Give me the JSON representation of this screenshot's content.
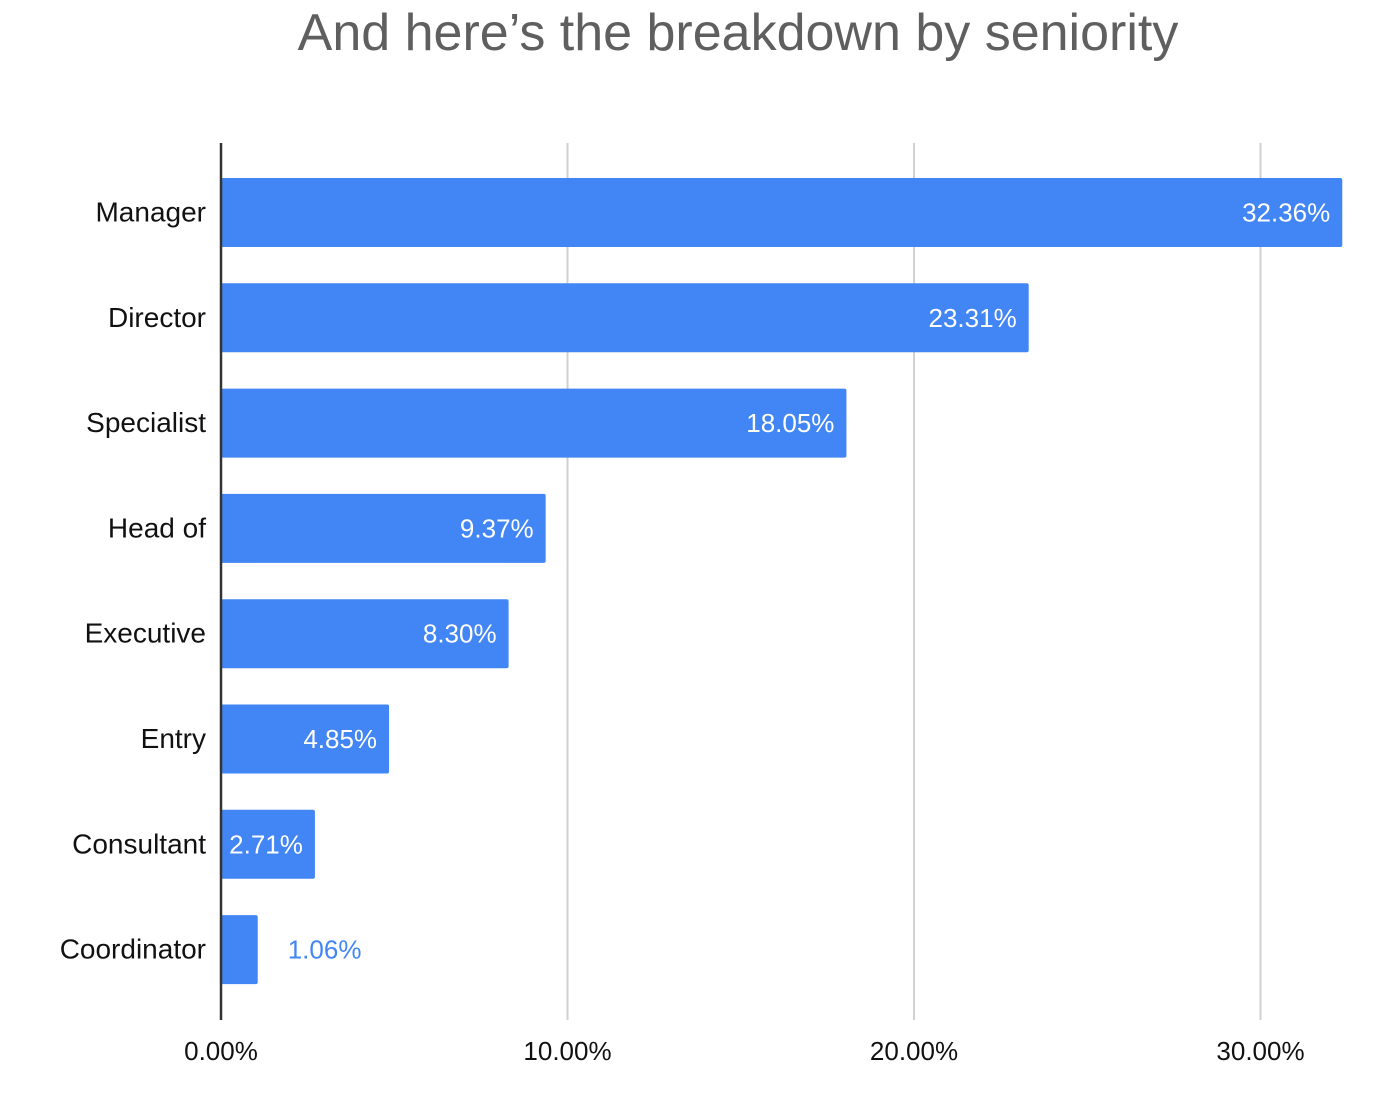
{
  "chart_data": {
    "type": "bar",
    "orientation": "horizontal",
    "title": "And here’s the breakdown by seniority",
    "categories": [
      "Manager",
      "Director",
      "Specialist",
      "Head of",
      "Executive",
      "Entry",
      "Consultant",
      "Coordinator"
    ],
    "values": [
      32.36,
      23.31,
      18.05,
      9.37,
      8.3,
      4.85,
      2.71,
      1.06
    ],
    "value_labels": [
      "32.36%",
      "23.31%",
      "18.05%",
      "9.37%",
      "8.30%",
      "4.85%",
      "2.71%",
      "1.06%"
    ],
    "x_ticks": [
      0,
      10,
      20,
      30
    ],
    "x_tick_labels": [
      "0.00%",
      "10.00%",
      "20.00%",
      "30.00%"
    ],
    "xlim": [
      0,
      32.36
    ],
    "grid": true,
    "legend": "none",
    "colors": {
      "bar": "#4285f4",
      "label_inside": "#ffffff",
      "label_outside": "#4285f4",
      "grid": "#d0d0d0",
      "axis": "#333333",
      "title": "#5f5f5f"
    }
  }
}
